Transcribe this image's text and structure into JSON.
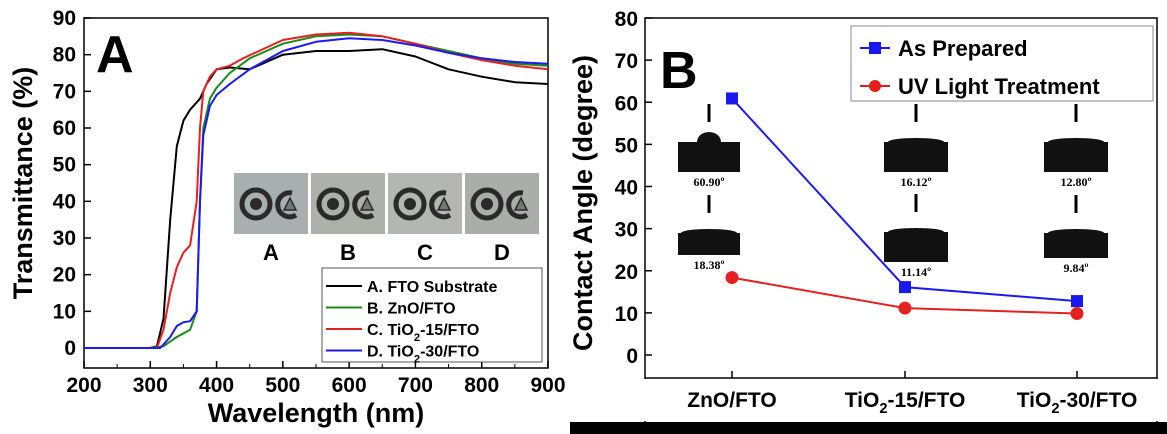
{
  "chart_data": [
    {
      "type": "line",
      "panel_label": "A",
      "xlabel": "Wavelength (nm)",
      "ylabel": "Transmittance (%)",
      "xlim": [
        200,
        900
      ],
      "ylim": [
        -5,
        90
      ],
      "xticks": [
        "200",
        "300",
        "400",
        "500",
        "600",
        "700",
        "800",
        "900"
      ],
      "yticks": [
        "0",
        "10",
        "20",
        "30",
        "40",
        "50",
        "60",
        "70",
        "80",
        "90"
      ],
      "legend_position": "bottom-right",
      "inset_labels": [
        "A",
        "B",
        "C",
        "D"
      ],
      "series": [
        {
          "name": "A. FTO Substrate",
          "color": "#000000",
          "x": [
            200,
            300,
            310,
            320,
            330,
            340,
            350,
            360,
            375,
            385,
            400,
            420,
            450,
            500,
            550,
            600,
            650,
            700,
            750,
            800,
            850,
            900
          ],
          "y": [
            0,
            0,
            0.5,
            8,
            35,
            55,
            62,
            65,
            68,
            72,
            76,
            76.5,
            76,
            80,
            81,
            81,
            81.5,
            79.5,
            76,
            74,
            72.5,
            72
          ]
        },
        {
          "name": "B. ZnO/FTO",
          "color": "#1a8a1a",
          "x": [
            200,
            300,
            320,
            340,
            360,
            370,
            375,
            380,
            390,
            400,
            420,
            450,
            500,
            550,
            600,
            650,
            700,
            750,
            800,
            850,
            900
          ],
          "y": [
            0,
            0,
            0.5,
            3,
            5,
            10,
            40,
            60,
            68,
            71,
            75,
            79,
            83,
            85,
            85.5,
            85,
            83,
            81,
            79,
            77.5,
            77
          ]
        },
        {
          "name": "C. TiO2-15/FTO",
          "color": "#e52020",
          "x": [
            200,
            310,
            320,
            330,
            340,
            350,
            360,
            370,
            375,
            380,
            390,
            400,
            420,
            440,
            500,
            550,
            600,
            650,
            700,
            750,
            800,
            850,
            900
          ],
          "y": [
            0,
            0,
            5,
            15,
            22,
            26,
            28,
            40,
            60,
            70,
            74,
            76,
            77,
            79,
            84,
            85.5,
            86,
            85,
            83,
            80.5,
            78.5,
            77,
            76
          ]
        },
        {
          "name": "D. TiO2-30/FTO",
          "color": "#1a1aee",
          "x": [
            200,
            315,
            330,
            340,
            350,
            360,
            370,
            375,
            380,
            390,
            400,
            420,
            450,
            500,
            550,
            600,
            650,
            700,
            750,
            800,
            850,
            900
          ],
          "y": [
            0,
            0,
            3,
            6,
            7,
            7.3,
            10,
            40,
            58,
            66,
            69,
            72,
            76,
            81,
            83.5,
            84.5,
            84,
            82.5,
            80.5,
            79,
            78,
            77.5
          ]
        }
      ]
    },
    {
      "type": "line",
      "panel_label": "B",
      "ylabel": "Contact Angle (degree)",
      "ylim": [
        -5,
        80
      ],
      "yticks": [
        "0",
        "10",
        "20",
        "30",
        "40",
        "50",
        "60",
        "70",
        "80"
      ],
      "categories": [
        "ZnO/FTO",
        "TiO2-15/FTO",
        "TiO2-30/FTO"
      ],
      "legend_position": "top-right",
      "series": [
        {
          "name": "As Prepared",
          "color": "#1a1aee",
          "marker": "square",
          "values": [
            60.9,
            16.12,
            12.8
          ],
          "labels": [
            "60.90º",
            "16.12º",
            "12.80º"
          ]
        },
        {
          "name": "UV Light Treatment",
          "color": "#e52020",
          "marker": "circle",
          "values": [
            18.38,
            11.14,
            9.84
          ],
          "labels": [
            "18.38º",
            "11.14º",
            "9.84º"
          ]
        }
      ]
    }
  ]
}
